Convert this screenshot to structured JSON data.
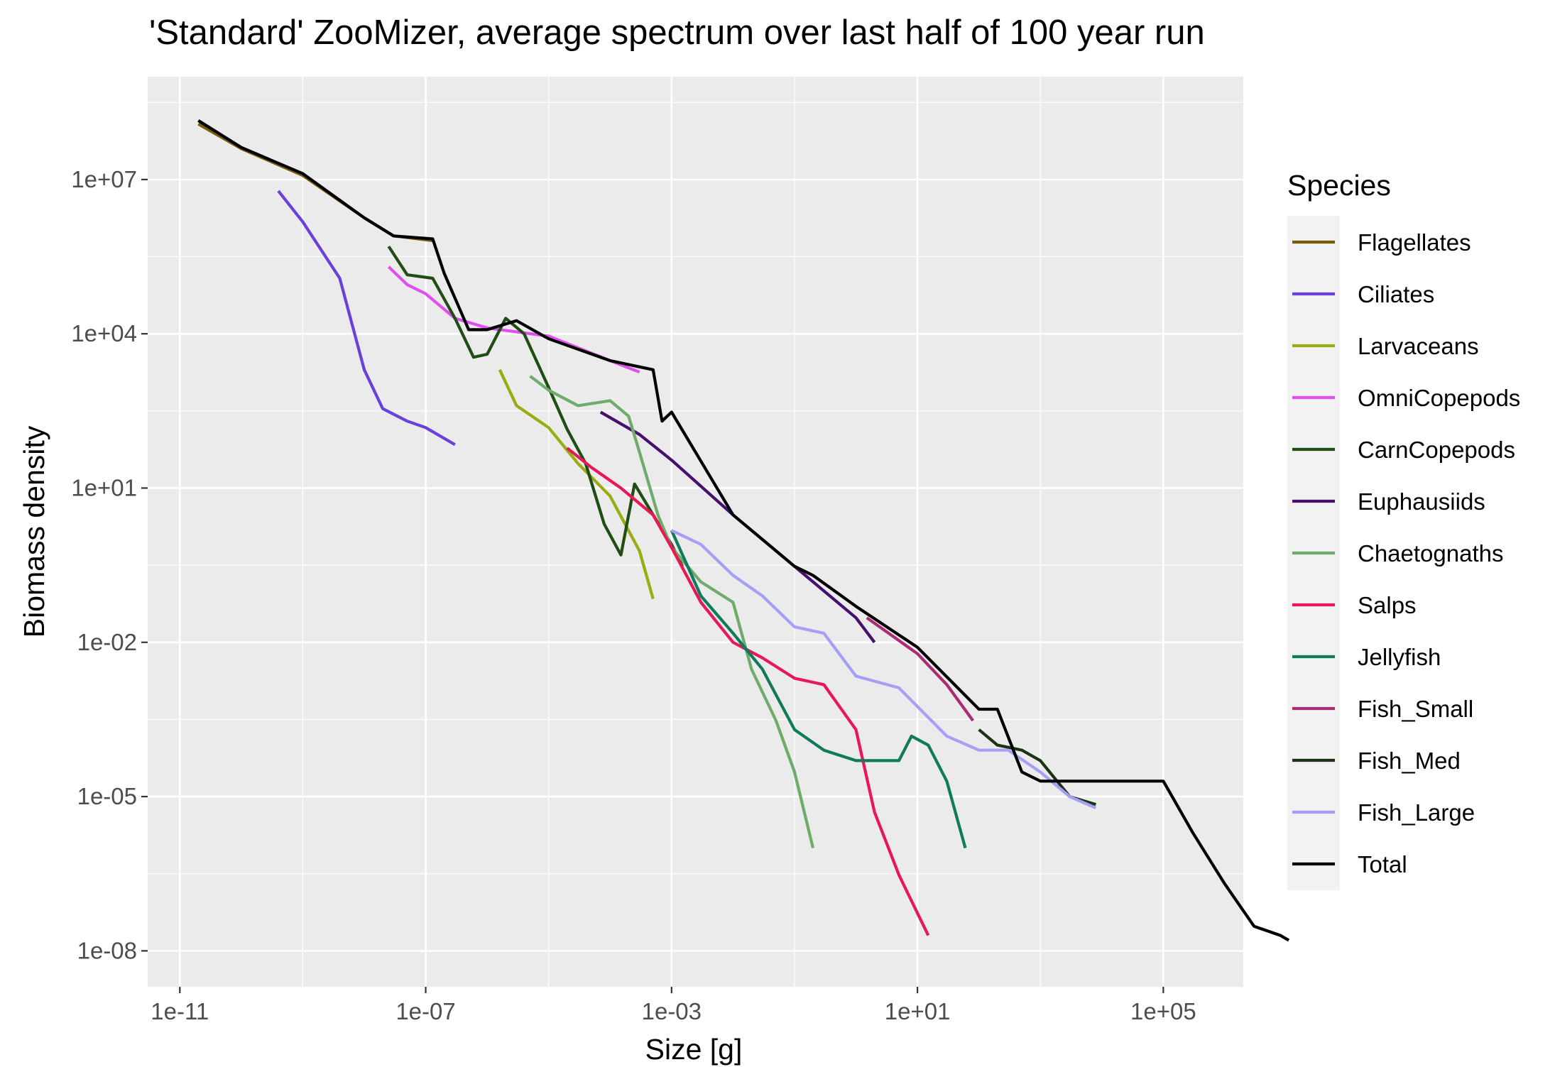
{
  "chart_data": {
    "type": "line",
    "title": "'Standard' ZooMizer, average spectrum over last half of 100 year run",
    "xlabel": "Size [g]",
    "ylabel": "Biomass density",
    "xscale": "log10",
    "yscale": "log10",
    "xlim": [
      3e-12,
      2000000.0
    ],
    "ylim": [
      2e-09,
      1000000000.0
    ],
    "x_ticks": [
      {
        "value": 1e-11,
        "label": "1e-11"
      },
      {
        "value": 1e-07,
        "label": "1e-07"
      },
      {
        "value": 0.001,
        "label": "1e-03"
      },
      {
        "value": 10,
        "label": "1e+01"
      },
      {
        "value": 100000.0,
        "label": "1e+05"
      }
    ],
    "y_ticks": [
      {
        "value": 1e-08,
        "label": "1e-08"
      },
      {
        "value": 1e-05,
        "label": "1e-05"
      },
      {
        "value": 0.01,
        "label": "1e-02"
      },
      {
        "value": 10,
        "label": "1e+01"
      },
      {
        "value": 10000.0,
        "label": "1e+04"
      },
      {
        "value": 10000000.0,
        "label": "1e+07"
      }
    ],
    "grid": true,
    "legend_title": "Species",
    "legend_position": "right",
    "series": [
      {
        "name": "Flagellates",
        "color": "#7a5c08",
        "points": [
          [
            2e-11,
            120000000.0
          ],
          [
            1e-10,
            40000000.0
          ],
          [
            1e-09,
            12000000.0
          ],
          [
            1e-08,
            1800000.0
          ],
          [
            3e-08,
            800000.0
          ],
          [
            1.3e-07,
            650000.0
          ]
        ]
      },
      {
        "name": "Ciliates",
        "color": "#6a3fdc",
        "points": [
          [
            4e-10,
            6000000.0
          ],
          [
            1e-09,
            1500000.0
          ],
          [
            4e-09,
            120000.0
          ],
          [
            1e-08,
            2000.0
          ],
          [
            2e-08,
            350.0
          ],
          [
            5e-08,
            200.0
          ],
          [
            1e-07,
            150.0
          ],
          [
            3e-07,
            70
          ]
        ]
      },
      {
        "name": "Larvaceans",
        "color": "#9aac12",
        "points": [
          [
            1.6e-06,
            2000.0
          ],
          [
            3e-06,
            400
          ],
          [
            1e-05,
            150
          ],
          [
            3e-05,
            30
          ],
          [
            0.0001,
            7
          ],
          [
            0.0003,
            0.6
          ],
          [
            0.0005,
            0.07
          ]
        ]
      },
      {
        "name": "OmniCopepods",
        "color": "#e04ff0",
        "points": [
          [
            2.5e-08,
            200000.0
          ],
          [
            5e-08,
            90000.0
          ],
          [
            1e-07,
            60000.0
          ],
          [
            3e-07,
            20000.0
          ],
          [
            1e-06,
            13000.0
          ],
          [
            1e-05,
            9000.0
          ],
          [
            0.0001,
            3000.0
          ],
          [
            0.0003,
            1800.0
          ]
        ]
      },
      {
        "name": "CarnCopepods",
        "color": "#1f4d14",
        "points": [
          [
            2.5e-08,
            500000.0
          ],
          [
            5e-08,
            140000.0
          ],
          [
            1.3e-07,
            120000.0
          ],
          [
            3e-07,
            20000.0
          ],
          [
            6e-07,
            3500.0
          ],
          [
            1e-06,
            4000.0
          ],
          [
            2e-06,
            20000.0
          ],
          [
            4e-06,
            10000.0
          ],
          [
            1e-05,
            900
          ],
          [
            2e-05,
            140
          ],
          [
            4e-05,
            30
          ],
          [
            8e-05,
            2
          ],
          [
            0.00015,
            0.5
          ],
          [
            0.00025,
            12
          ],
          [
            0.0005,
            3
          ],
          [
            0.001,
            0.8
          ],
          [
            0.0015,
            0.3
          ]
        ]
      },
      {
        "name": "Euphausiids",
        "color": "#47106e",
        "points": [
          [
            7e-05,
            300
          ],
          [
            0.0003,
            110
          ],
          [
            0.001,
            35
          ],
          [
            0.01,
            3
          ],
          [
            0.1,
            0.3
          ],
          [
            1,
            0.03
          ],
          [
            2,
            0.01
          ]
        ]
      },
      {
        "name": "Chaetognaths",
        "color": "#6fac6c",
        "points": [
          [
            5e-06,
            1500.0
          ],
          [
            1e-05,
            800
          ],
          [
            3e-05,
            400
          ],
          [
            0.0001,
            500
          ],
          [
            0.0002,
            250
          ],
          [
            0.0003,
            50
          ],
          [
            0.0006,
            3
          ],
          [
            0.001,
            0.7
          ],
          [
            0.003,
            0.15
          ],
          [
            0.01,
            0.06
          ],
          [
            0.02,
            0.003
          ],
          [
            0.05,
            0.0003
          ],
          [
            0.1,
            3e-05
          ],
          [
            0.2,
            1e-06
          ]
        ]
      },
      {
        "name": "Salps",
        "color": "#e81756",
        "points": [
          [
            2e-05,
            60
          ],
          [
            5e-05,
            25
          ],
          [
            0.00015,
            10
          ],
          [
            0.0005,
            3
          ],
          [
            0.001,
            0.7
          ],
          [
            0.003,
            0.06
          ],
          [
            0.01,
            0.01
          ],
          [
            0.03,
            0.005
          ],
          [
            0.1,
            0.002
          ],
          [
            0.3,
            0.0015
          ],
          [
            1,
            0.0002
          ],
          [
            2,
            5e-06
          ],
          [
            5,
            3e-07
          ],
          [
            15,
            2e-08
          ]
        ]
      },
      {
        "name": "Jellyfish",
        "color": "#117a5d",
        "points": [
          [
            0.001,
            1.5
          ],
          [
            0.003,
            0.08
          ],
          [
            0.01,
            0.015
          ],
          [
            0.03,
            0.003
          ],
          [
            0.1,
            0.0002
          ],
          [
            0.3,
            8e-05
          ],
          [
            1,
            5e-05
          ],
          [
            3,
            5e-05
          ],
          [
            5,
            5e-05
          ],
          [
            8,
            0.00015
          ],
          [
            15,
            0.0001
          ],
          [
            30,
            2e-05
          ],
          [
            60,
            1e-06
          ]
        ]
      },
      {
        "name": "Fish_Small",
        "color": "#ab2c75",
        "points": [
          [
            1.5,
            0.03
          ],
          [
            10,
            0.006
          ],
          [
            30,
            0.0015
          ],
          [
            80,
            0.0003
          ]
        ]
      },
      {
        "name": "Fish_Med",
        "color": "#1a3313",
        "points": [
          [
            100,
            0.0002
          ],
          [
            200,
            0.0001
          ],
          [
            500,
            8e-05
          ],
          [
            1000.0,
            5e-05
          ],
          [
            3000.0,
            1e-05
          ],
          [
            8000.0,
            7e-06
          ]
        ]
      },
      {
        "name": "Fish_Large",
        "color": "#a5a0f6",
        "points": [
          [
            0.001,
            1.5
          ],
          [
            0.003,
            0.8
          ],
          [
            0.01,
            0.2
          ],
          [
            0.03,
            0.08
          ],
          [
            0.1,
            0.02
          ],
          [
            0.3,
            0.015
          ],
          [
            1,
            0.0022
          ],
          [
            5,
            0.0013
          ],
          [
            30,
            0.00015
          ],
          [
            100,
            8e-05
          ],
          [
            300,
            8e-05
          ],
          [
            1000.0,
            3e-05
          ],
          [
            3000.0,
            1e-05
          ],
          [
            8000.0,
            6e-06
          ]
        ]
      },
      {
        "name": "Total",
        "color": "#000000",
        "points": [
          [
            2e-11,
            140000000.0
          ],
          [
            1e-10,
            42000000.0
          ],
          [
            1e-09,
            13000000.0
          ],
          [
            1e-08,
            1800000.0
          ],
          [
            3e-08,
            800000.0
          ],
          [
            1.3e-07,
            700000.0
          ],
          [
            2e-07,
            150000.0
          ],
          [
            5e-07,
            12000.0
          ],
          [
            1e-06,
            12000.0
          ],
          [
            3e-06,
            18000.0
          ],
          [
            1e-05,
            8000.0
          ],
          [
            0.0001,
            3000.0
          ],
          [
            0.0005,
            2000.0
          ],
          [
            0.0007,
            200
          ],
          [
            0.001,
            300
          ],
          [
            0.01,
            3
          ],
          [
            0.1,
            0.3
          ],
          [
            0.2,
            0.2
          ],
          [
            1,
            0.05
          ],
          [
            10,
            0.008
          ],
          [
            100,
            0.0005
          ],
          [
            200,
            0.0005
          ],
          [
            500,
            3e-05
          ],
          [
            1000.0,
            2e-05
          ],
          [
            3000.0,
            2e-05
          ],
          [
            10000.0,
            2e-05
          ],
          [
            50000.0,
            2e-05
          ],
          [
            100000.0,
            2e-05
          ],
          [
            300000.0,
            2e-06
          ],
          [
            1000000.0,
            2e-07
          ],
          [
            3000000.0,
            3e-08
          ],
          [
            8000000.0,
            2e-08
          ],
          [
            11000000.0,
            1.6e-08
          ]
        ]
      }
    ]
  }
}
